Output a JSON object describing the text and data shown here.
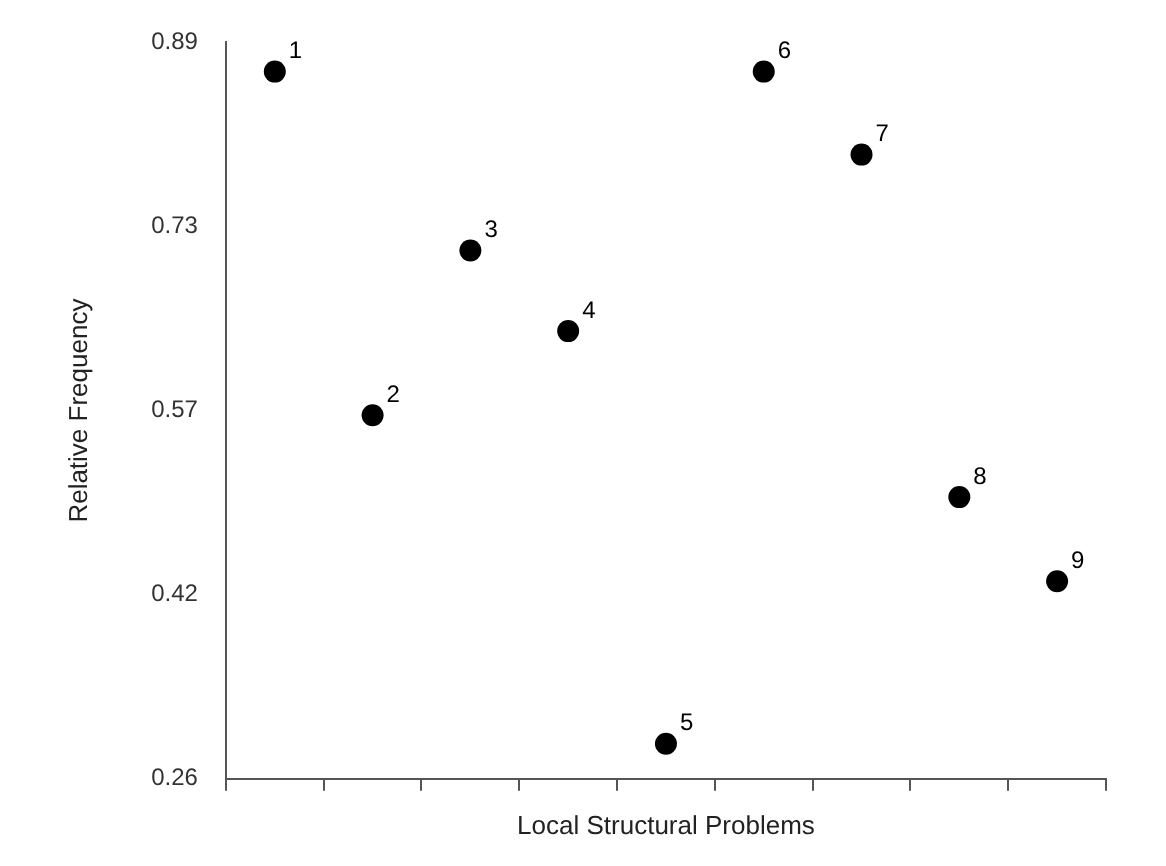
{
  "chart_data": {
    "type": "scatter",
    "xlabel": "Local Structural Problems",
    "ylabel": "Relative Frequency",
    "categories": [
      null,
      null,
      null,
      null,
      null,
      null,
      null,
      null,
      null
    ],
    "series": [
      {
        "color": "#000000",
        "values": [
          0.865,
          0.571,
          0.712,
          0.643,
          0.29,
          0.865,
          0.794,
          0.501,
          0.429
        ]
      }
    ],
    "annotations": [
      {
        "text": "1",
        "y": 0.865
      },
      {
        "text": "2",
        "y": 0.571
      },
      {
        "text": "3",
        "y": 0.712
      },
      {
        "text": "4",
        "y": 0.643
      },
      {
        "text": "5",
        "y": 0.29
      },
      {
        "text": "6",
        "y": 0.865
      },
      {
        "text": "7",
        "y": 0.794
      },
      {
        "text": "8",
        "y": 0.501
      },
      {
        "text": "9",
        "y": 0.429
      }
    ],
    "ylim": [
      0.26,
      0.89
    ],
    "yticks": [
      {
        "value": 0.26,
        "label": "0.26"
      },
      {
        "value": 0.4175,
        "label": "0.42"
      },
      {
        "value": 0.575,
        "label": "0.57"
      },
      {
        "value": 0.7325,
        "label": "0.73"
      },
      {
        "value": 0.89,
        "label": "0.89"
      }
    ],
    "tick_labels": "y",
    "grid": false,
    "legend": false,
    "marker": "circle"
  }
}
